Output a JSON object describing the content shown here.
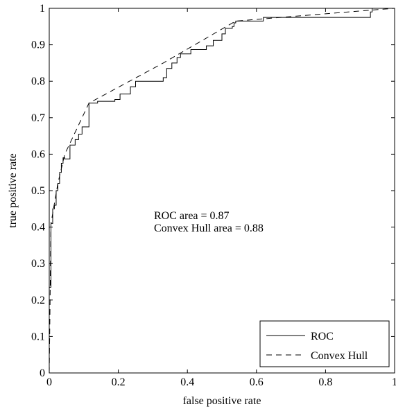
{
  "chart_data": {
    "type": "line",
    "title": "",
    "xlabel": "false positive rate",
    "ylabel": "true positive rate",
    "xlim": [
      0,
      1
    ],
    "ylim": [
      0,
      1
    ],
    "grid": false,
    "legend_position": "bottom-right",
    "x_ticks": [
      "0",
      "0.2",
      "0.4",
      "0.6",
      "0.8",
      "1"
    ],
    "y_ticks": [
      "0",
      "0.1",
      "0.2",
      "0.3",
      "0.4",
      "0.5",
      "0.6",
      "0.7",
      "0.8",
      "0.9",
      "1"
    ],
    "annotations": [
      "ROC area = 0.87",
      "Convex Hull area = 0.88"
    ],
    "series": [
      {
        "name": "ROC",
        "style": "solid",
        "color": "#000000",
        "x": [
          0,
          0,
          0.005,
          0.005,
          0.01,
          0.01,
          0.015,
          0.015,
          0.02,
          0.02,
          0.025,
          0.025,
          0.03,
          0.03,
          0.035,
          0.035,
          0.04,
          0.04,
          0.045,
          0.045,
          0.06,
          0.06,
          0.075,
          0.075,
          0.085,
          0.085,
          0.095,
          0.095,
          0.115,
          0.115,
          0.14,
          0.14,
          0.19,
          0.19,
          0.205,
          0.205,
          0.235,
          0.235,
          0.25,
          0.25,
          0.33,
          0.33,
          0.34,
          0.34,
          0.355,
          0.355,
          0.37,
          0.37,
          0.38,
          0.38,
          0.41,
          0.41,
          0.455,
          0.455,
          0.475,
          0.475,
          0.5,
          0.5,
          0.51,
          0.51,
          0.53,
          0.53,
          0.535,
          0.535,
          0.54,
          0.54,
          0.62,
          0.62,
          0.93,
          0.93,
          0.935,
          0.935,
          1
        ],
        "y": [
          0,
          0.235,
          0.235,
          0.41,
          0.41,
          0.45,
          0.45,
          0.46,
          0.46,
          0.5,
          0.5,
          0.52,
          0.52,
          0.55,
          0.55,
          0.575,
          0.575,
          0.59,
          0.59,
          0.587,
          0.587,
          0.625,
          0.625,
          0.64,
          0.64,
          0.655,
          0.655,
          0.675,
          0.675,
          0.74,
          0.74,
          0.745,
          0.745,
          0.75,
          0.75,
          0.765,
          0.765,
          0.785,
          0.785,
          0.8,
          0.8,
          0.81,
          0.81,
          0.835,
          0.835,
          0.85,
          0.85,
          0.865,
          0.865,
          0.875,
          0.875,
          0.887,
          0.887,
          0.897,
          0.897,
          0.912,
          0.912,
          0.93,
          0.93,
          0.945,
          0.945,
          0.95,
          0.95,
          0.96,
          0.96,
          0.965,
          0.965,
          0.975,
          0.975,
          0.99,
          0.99,
          1,
          1
        ]
      },
      {
        "name": "Convex Hull",
        "style": "dashed",
        "color": "#000000",
        "x": [
          0,
          0.005,
          0.025,
          0.045,
          0.115,
          0.33,
          0.54,
          0.93,
          1
        ],
        "y": [
          0,
          0.41,
          0.52,
          0.6,
          0.74,
          0.85,
          0.965,
          0.995,
          1
        ]
      }
    ]
  }
}
